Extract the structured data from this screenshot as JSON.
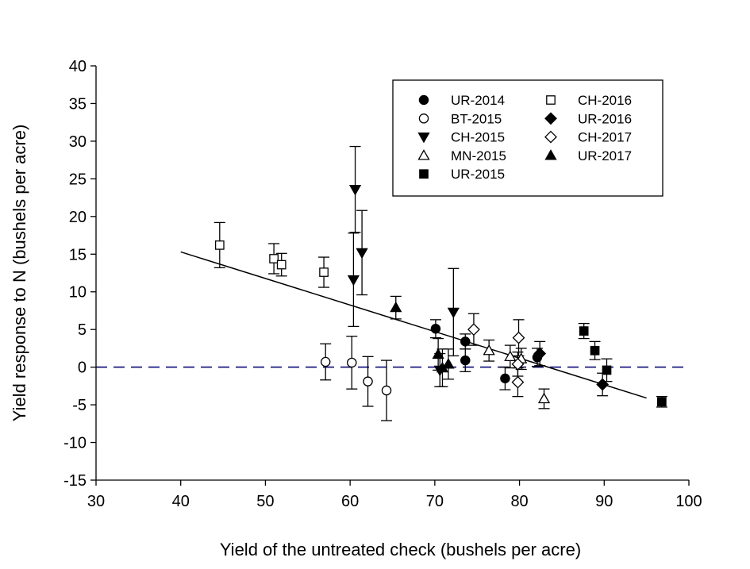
{
  "chart_data": {
    "type": "scatter",
    "title": "",
    "xlabel": "Yield of the untreated check (bushels per acre)",
    "ylabel": "Yield response to N (bushels per acre)",
    "xlim": [
      30,
      100
    ],
    "ylim": [
      -15,
      40
    ],
    "xticks": [
      30,
      40,
      50,
      60,
      70,
      80,
      90,
      100
    ],
    "yticks": [
      -15,
      -10,
      -5,
      0,
      5,
      10,
      15,
      20,
      25,
      30,
      35,
      40
    ],
    "grid": false,
    "legend_position": "top-right",
    "reference_line": {
      "y": 0,
      "style": "dashed",
      "color": "#1a1a80"
    },
    "trend_line": {
      "x": [
        40,
        95
      ],
      "y": [
        15.3,
        -4.1
      ],
      "color": "#000000"
    },
    "series": [
      {
        "name": "UR-2014",
        "marker": "circle",
        "filled": true,
        "points": [
          {
            "x": 70.1,
            "y": 5.1,
            "err": 1.2
          },
          {
            "x": 73.6,
            "y": 3.4,
            "err": 1.0
          },
          {
            "x": 73.6,
            "y": 0.9,
            "err": 1.5
          },
          {
            "x": 78.3,
            "y": -1.5,
            "err": 1.5
          },
          {
            "x": 82.1,
            "y": 1.3,
            "err": 1.2
          }
        ]
      },
      {
        "name": "BT-2015",
        "marker": "circle",
        "filled": false,
        "points": [
          {
            "x": 57.1,
            "y": 0.7,
            "err": 2.4
          },
          {
            "x": 60.2,
            "y": 0.6,
            "err": 3.5
          },
          {
            "x": 62.1,
            "y": -1.9,
            "err": 3.3
          },
          {
            "x": 64.3,
            "y": -3.1,
            "err": 4.0
          }
        ]
      },
      {
        "name": "CH-2015",
        "marker": "triangle-down",
        "filled": true,
        "points": [
          {
            "x": 60.6,
            "y": 23.6,
            "err": 5.7
          },
          {
            "x": 61.4,
            "y": 15.2,
            "err": 5.6
          },
          {
            "x": 60.4,
            "y": 11.6,
            "err": 6.2
          },
          {
            "x": 72.2,
            "y": 7.3,
            "err": 5.8
          },
          {
            "x": 70.6,
            "y": -0.4,
            "err": 2.2
          }
        ]
      },
      {
        "name": "MN-2015",
        "marker": "triangle-up",
        "filled": false,
        "points": [
          {
            "x": 76.4,
            "y": 2.2,
            "err": 1.4
          },
          {
            "x": 78.9,
            "y": 1.4,
            "err": 1.5
          },
          {
            "x": 80.2,
            "y": 1.1,
            "err": 1.4
          },
          {
            "x": 82.9,
            "y": -4.2,
            "err": 1.3
          }
        ]
      },
      {
        "name": "UR-2015",
        "marker": "square",
        "filled": true,
        "points": [
          {
            "x": 87.6,
            "y": 4.8,
            "err": 1.0
          },
          {
            "x": 88.9,
            "y": 2.2,
            "err": 1.2
          },
          {
            "x": 90.3,
            "y": -0.4,
            "err": 1.5
          },
          {
            "x": 96.8,
            "y": -4.6,
            "err": 0.7
          }
        ]
      },
      {
        "name": "CH-2016",
        "marker": "square",
        "filled": false,
        "points": [
          {
            "x": 44.6,
            "y": 16.2,
            "err": 3.0
          },
          {
            "x": 51.0,
            "y": 14.4,
            "err": 2.0
          },
          {
            "x": 51.9,
            "y": 13.6,
            "err": 1.5
          },
          {
            "x": 56.9,
            "y": 12.6,
            "err": 2.0
          }
        ]
      },
      {
        "name": "UR-2016",
        "marker": "diamond",
        "filled": true,
        "points": [
          {
            "x": 82.4,
            "y": 1.8,
            "err": 1.6
          },
          {
            "x": 89.8,
            "y": -2.3,
            "err": 1.5
          }
        ]
      },
      {
        "name": "CH-2017",
        "marker": "diamond",
        "filled": false,
        "points": [
          {
            "x": 74.6,
            "y": 5.0,
            "err": 2.1
          },
          {
            "x": 79.9,
            "y": 3.9,
            "err": 2.4
          },
          {
            "x": 79.8,
            "y": 0.4,
            "err": 1.6
          },
          {
            "x": 79.8,
            "y": -2.0,
            "err": 1.9
          }
        ]
      },
      {
        "name": "UR-2017",
        "marker": "triangle-up",
        "filled": true,
        "points": [
          {
            "x": 65.4,
            "y": 7.9,
            "err": 1.5
          },
          {
            "x": 70.4,
            "y": 1.7,
            "err": 2.1
          },
          {
            "x": 70.9,
            "y": -0.1,
            "err": 2.5
          },
          {
            "x": 71.6,
            "y": 0.4,
            "err": 2.0
          }
        ]
      }
    ],
    "legend_columns": [
      [
        "UR-2014",
        "BT-2015",
        "CH-2015",
        "MN-2015",
        "UR-2015"
      ],
      [
        "CH-2016",
        "UR-2016",
        "CH-2017",
        "UR-2017"
      ]
    ]
  }
}
